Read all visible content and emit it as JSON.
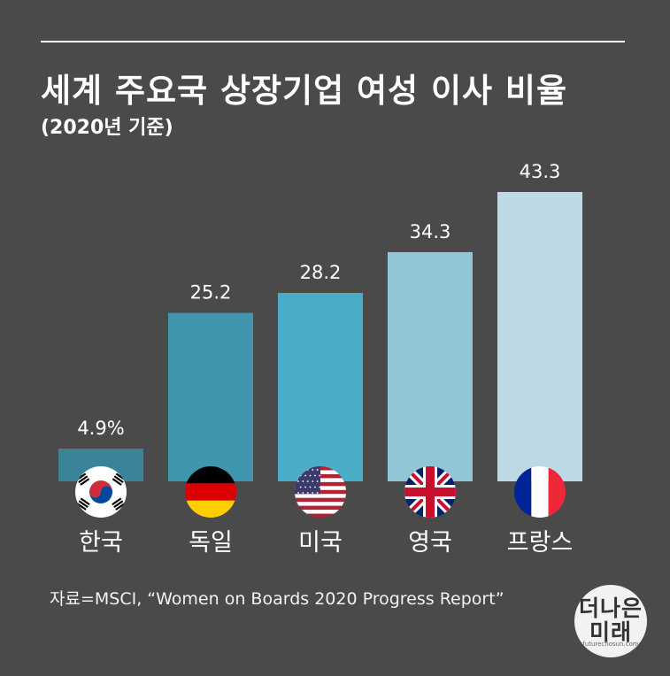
{
  "title": "세계 주요국 상장기업 여성 이사 비율",
  "subtitle": "(2020년 기준)",
  "source": "자료=MSCI, “Women on Boards 2020 Progress Report”",
  "logo": {
    "line1": "더나은",
    "line2": "미래",
    "url": "futurechosun.com"
  },
  "chart_data": {
    "type": "bar",
    "categories": [
      "한국",
      "독일",
      "미국",
      "영국",
      "프랑스"
    ],
    "values": [
      4.9,
      25.2,
      28.2,
      34.3,
      43.3
    ],
    "value_labels": [
      "4.9%",
      "25.2",
      "28.2",
      "34.3",
      "43.3"
    ],
    "unit": "%",
    "colors": [
      "#3a8499",
      "#3f96ad",
      "#4aacc6",
      "#92c5d6",
      "#bcd9e5"
    ],
    "flags": [
      "south-korea-flag-icon",
      "germany-flag-icon",
      "usa-flag-icon",
      "uk-flag-icon",
      "france-flag-icon"
    ],
    "ylim": [
      0,
      43.3
    ],
    "grid": false,
    "legend": "none"
  }
}
